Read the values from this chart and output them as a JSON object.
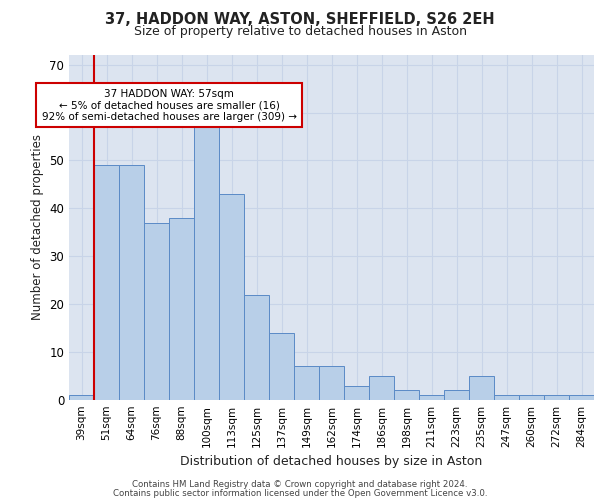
{
  "title1": "37, HADDON WAY, ASTON, SHEFFIELD, S26 2EH",
  "title2": "Size of property relative to detached houses in Aston",
  "xlabel": "Distribution of detached houses by size in Aston",
  "ylabel": "Number of detached properties",
  "categories": [
    "39sqm",
    "51sqm",
    "64sqm",
    "76sqm",
    "88sqm",
    "100sqm",
    "113sqm",
    "125sqm",
    "137sqm",
    "149sqm",
    "162sqm",
    "174sqm",
    "186sqm",
    "198sqm",
    "211sqm",
    "223sqm",
    "235sqm",
    "247sqm",
    "260sqm",
    "272sqm",
    "284sqm"
  ],
  "values": [
    1,
    49,
    49,
    37,
    38,
    58,
    43,
    22,
    14,
    7,
    7,
    3,
    5,
    2,
    1,
    2,
    5,
    1,
    1,
    1,
    1
  ],
  "bar_color": "#b8cfe8",
  "bar_edge_color": "#5a8ac6",
  "vline_x": 1,
  "vline_color": "#cc0000",
  "annotation_text": "37 HADDON WAY: 57sqm\n← 5% of detached houses are smaller (16)\n92% of semi-detached houses are larger (309) →",
  "annotation_box_color": "#ffffff",
  "annotation_box_edge": "#cc0000",
  "ylim": [
    0,
    72
  ],
  "yticks": [
    0,
    10,
    20,
    30,
    40,
    50,
    60,
    70
  ],
  "grid_color": "#c8d4e8",
  "background_color": "#dce4f0",
  "footer1": "Contains HM Land Registry data © Crown copyright and database right 2024.",
  "footer2": "Contains public sector information licensed under the Open Government Licence v3.0."
}
